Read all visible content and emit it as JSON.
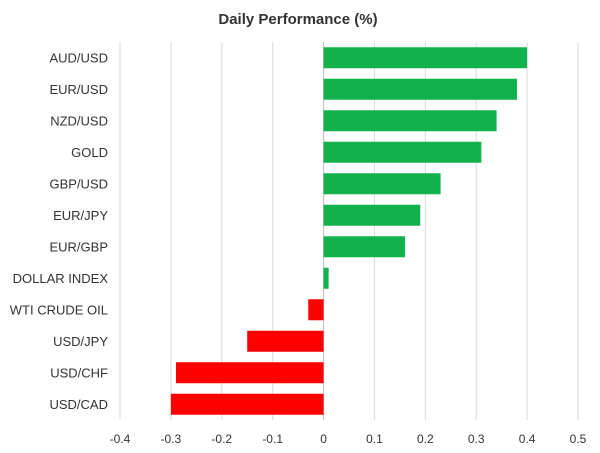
{
  "chart_data": {
    "type": "bar",
    "orientation": "horizontal",
    "title": "Daily Performance (%)",
    "xlabel": "",
    "ylabel": "",
    "xlim": [
      -0.4,
      0.5
    ],
    "x_ticks": [
      -0.4,
      -0.3,
      -0.2,
      -0.1,
      0,
      0.1,
      0.2,
      0.3,
      0.4,
      0.5
    ],
    "x_tick_labels": [
      "-0.4",
      "-0.3",
      "-0.2",
      "-0.1",
      "0",
      "0.1",
      "0.2",
      "0.3",
      "0.4",
      "0.5"
    ],
    "grid": "vertical gridlines",
    "legend": "none",
    "categories": [
      "AUD/USD",
      "EUR/USD",
      "NZD/USD",
      "GOLD",
      "GBP/USD",
      "EUR/JPY",
      "EUR/GBP",
      "DOLLAR INDEX",
      "WTI CRUDE OIL",
      "USD/JPY",
      "USD/CHF",
      "USD/CAD"
    ],
    "values": [
      0.4,
      0.38,
      0.34,
      0.31,
      0.23,
      0.19,
      0.16,
      0.01,
      -0.03,
      -0.15,
      -0.29,
      -0.3
    ],
    "colors": {
      "positive": "#11b24b",
      "negative": "#ff0000",
      "grid": "#d9d9d9",
      "axis": "#bfbfbf",
      "text": "#333333"
    }
  }
}
